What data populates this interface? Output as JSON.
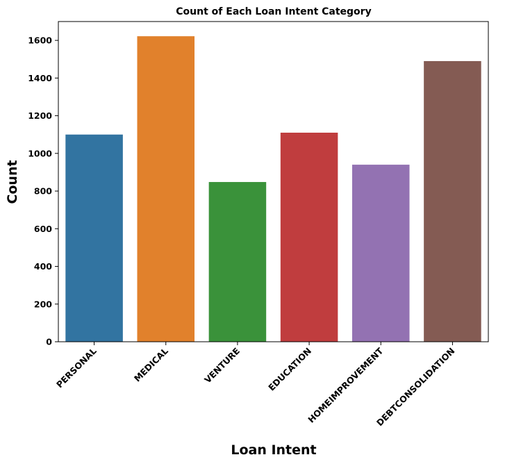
{
  "chart_data": {
    "type": "bar",
    "title": "Count of Each Loan Intent Category",
    "xlabel": "Loan Intent",
    "ylabel": "Count",
    "categories": [
      "PERSONAL",
      "MEDICAL",
      "VENTURE",
      "EDUCATION",
      "HOMEIMPROVEMENT",
      "DEBTCONSOLIDATION"
    ],
    "values": [
      1100,
      1622,
      848,
      1110,
      940,
      1490
    ],
    "colors": [
      "#3274a1",
      "#e1812c",
      "#3a923a",
      "#c03d3e",
      "#9372b2",
      "#845b53"
    ],
    "ylim": [
      0,
      1700
    ],
    "yticks": [
      "0",
      "200",
      "400",
      "600",
      "800",
      "1000",
      "1200",
      "1400",
      "1600"
    ],
    "grid": false,
    "legend": "none"
  }
}
